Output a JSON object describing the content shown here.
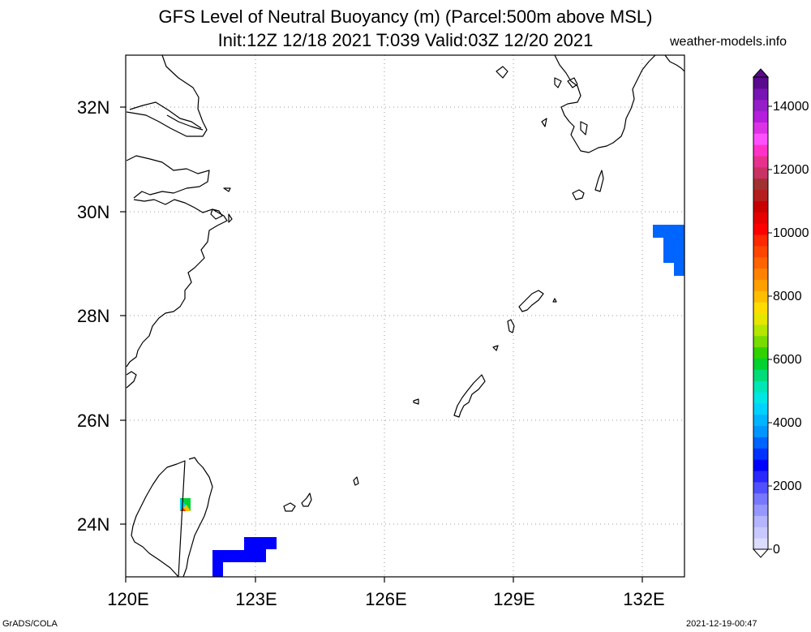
{
  "header": {
    "title_line1": "GFS Level of Neutral Buoyancy (m) (Parcel:500m above MSL)",
    "title_line2": "Init:12Z 12/18 2021 T:039 Valid:03Z 12/20 2021",
    "site": "weather-models.info"
  },
  "map": {
    "lat_labels": [
      "32N",
      "30N",
      "28N",
      "26N",
      "24N"
    ],
    "lon_labels": [
      "120E",
      "123E",
      "126E",
      "129E",
      "132E"
    ],
    "extent": {
      "lon_min": 120,
      "lon_max": 133,
      "lat_min": 23,
      "lat_max": 33
    },
    "grid_style": "dotted",
    "field_cells_color": "#0064ff",
    "field_cells_dark_color": "#0000ff"
  },
  "colorbar": {
    "labels": [
      "14000",
      "12000",
      "10000",
      "8000",
      "6000",
      "4000",
      "2000",
      "0"
    ],
    "colors": [
      "#dcdcff",
      "#c8c8ff",
      "#b4b4ff",
      "#9696ff",
      "#7878ff",
      "#5050ff",
      "#2828ff",
      "#0000ff",
      "#0032ff",
      "#0064ff",
      "#0096ff",
      "#00b4ff",
      "#00d2ff",
      "#00e6e6",
      "#00e6b4",
      "#00dc78",
      "#00d232",
      "#32d200",
      "#78dc00",
      "#b4e600",
      "#e6e600",
      "#ffdc00",
      "#ffbe00",
      "#ffa000",
      "#ff8200",
      "#ff6400",
      "#ff4600",
      "#ff2800",
      "#ff0000",
      "#e60000",
      "#c80000",
      "#b41e1e",
      "#a03232",
      "#c83264",
      "#e6328c",
      "#ff32c8",
      "#ff50ff",
      "#dc32e6",
      "#b41edc",
      "#961ec8",
      "#7814b4",
      "#5a0a8c"
    ]
  },
  "footer": {
    "left": "GrADS/COLA",
    "right": "2021-12-19-00:47"
  }
}
